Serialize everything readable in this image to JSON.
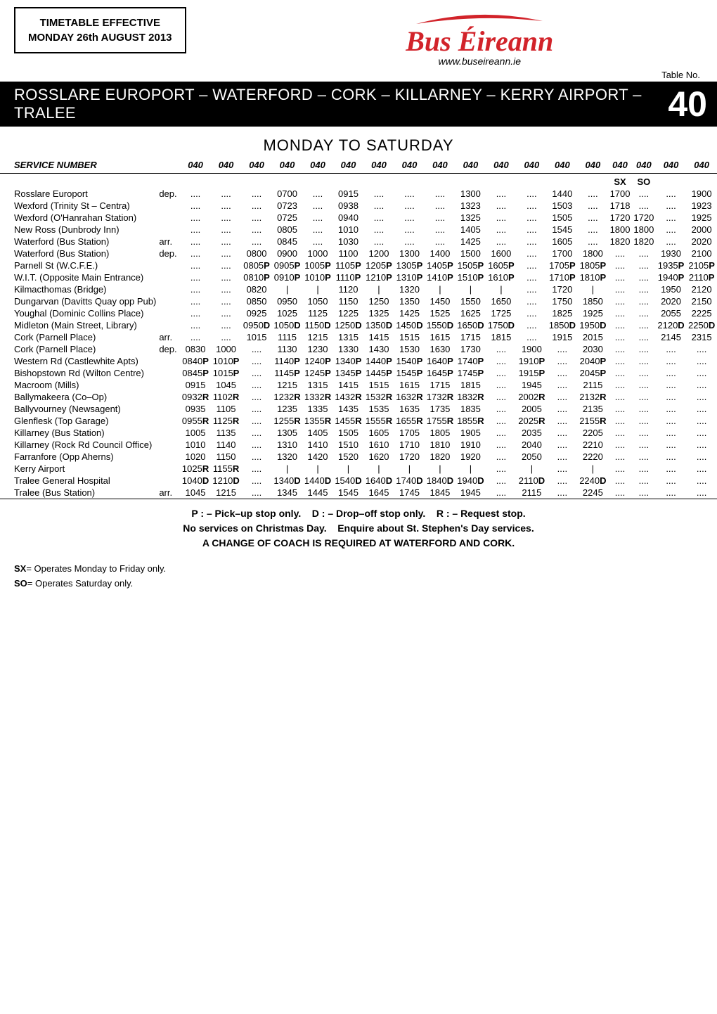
{
  "effective": {
    "line1": "TIMETABLE EFFECTIVE",
    "line2": "MONDAY 26th AUGUST 2013"
  },
  "logo": {
    "text": "Bus Éireann",
    "url": "www.buseireann.ie"
  },
  "tableNoLabel": "Table No.",
  "routeTitle": "ROSSLARE EUROPORT – WATERFORD – CORK – KILLARNEY – KERRY AIRPORT – TRALEE",
  "routeNumber": "40",
  "dayHeader": "MONDAY TO SATURDAY",
  "serviceLabel": "SERVICE NUMBER",
  "serviceCodes": [
    "040",
    "040",
    "040",
    "040",
    "040",
    "040",
    "040",
    "040",
    "040",
    "040",
    "040",
    "040",
    "040",
    "040",
    "040",
    "040",
    "040",
    "040"
  ],
  "sxRow": [
    "",
    "",
    "",
    "",
    "",
    "",
    "",
    "",
    "",
    "",
    "",
    "",
    "",
    "",
    "SX",
    "SO",
    "",
    ""
  ],
  "stops": [
    {
      "n": "Rosslare Europort",
      "q": "dep.",
      "t": [
        "....",
        "....",
        "....",
        "0700",
        "....",
        "0915",
        "....",
        "....",
        "....",
        "1300",
        "....",
        "....",
        "1440",
        "....",
        "1700",
        "....",
        "....",
        "1900"
      ]
    },
    {
      "n": "Wexford (Trinity St – Centra)",
      "q": "",
      "t": [
        "....",
        "....",
        "....",
        "0723",
        "....",
        "0938",
        "....",
        "....",
        "....",
        "1323",
        "....",
        "....",
        "1503",
        "....",
        "1718",
        "....",
        "....",
        "1923"
      ]
    },
    {
      "n": "Wexford (O'Hanrahan Station)",
      "q": "",
      "t": [
        "....",
        "....",
        "....",
        "0725",
        "....",
        "0940",
        "....",
        "....",
        "....",
        "1325",
        "....",
        "....",
        "1505",
        "....",
        "1720",
        "1720",
        "....",
        "1925"
      ]
    },
    {
      "n": "New Ross (Dunbrody Inn)",
      "q": "",
      "t": [
        "....",
        "....",
        "....",
        "0805",
        "....",
        "1010",
        "....",
        "....",
        "....",
        "1405",
        "....",
        "....",
        "1545",
        "....",
        "1800",
        "1800",
        "....",
        "2000"
      ]
    },
    {
      "n": "Waterford (Bus Station)",
      "q": "arr.",
      "t": [
        "....",
        "....",
        "....",
        "0845",
        "....",
        "1030",
        "....",
        "....",
        "....",
        "1425",
        "....",
        "....",
        "1605",
        "....",
        "1820",
        "1820",
        "....",
        "2020"
      ]
    },
    {
      "n": "Waterford (Bus Station)",
      "q": "dep.",
      "t": [
        "....",
        "....",
        "0800",
        "0900",
        "1000",
        "1100",
        "1200",
        "1300",
        "1400",
        "1500",
        "1600",
        "....",
        "1700",
        "1800",
        "....",
        "....",
        "1930",
        "2100"
      ]
    },
    {
      "n": "Parnell St (W.C.F.E.)",
      "q": "",
      "t": [
        "....",
        "....",
        "0805P",
        "0905P",
        "1005P",
        "1105P",
        "1205P",
        "1305P",
        "1405P",
        "1505P",
        "1605P",
        "....",
        "1705P",
        "1805P",
        "....",
        "....",
        "1935P",
        "2105P"
      ]
    },
    {
      "n": "W.I.T. (Opposite Main Entrance)",
      "q": "",
      "t": [
        "....",
        "....",
        "0810P",
        "0910P",
        "1010P",
        "1110P",
        "1210P",
        "1310P",
        "1410P",
        "1510P",
        "1610P",
        "....",
        "1710P",
        "1810P",
        "....",
        "....",
        "1940P",
        "2110P"
      ]
    },
    {
      "n": "Kilmacthomas (Bridge)",
      "q": "",
      "t": [
        "....",
        "....",
        "0820",
        "|",
        "|",
        "1120",
        "|",
        "1320",
        "|",
        "|",
        "|",
        "....",
        "1720",
        "|",
        "....",
        "....",
        "1950",
        "2120"
      ]
    },
    {
      "n": "Dungarvan (Davitts Quay opp Pub)",
      "q": "",
      "t": [
        "....",
        "....",
        "0850",
        "0950",
        "1050",
        "1150",
        "1250",
        "1350",
        "1450",
        "1550",
        "1650",
        "....",
        "1750",
        "1850",
        "....",
        "....",
        "2020",
        "2150"
      ]
    },
    {
      "n": "Youghal (Dominic Collins Place)",
      "q": "",
      "t": [
        "....",
        "....",
        "0925",
        "1025",
        "1125",
        "1225",
        "1325",
        "1425",
        "1525",
        "1625",
        "1725",
        "....",
        "1825",
        "1925",
        "....",
        "....",
        "2055",
        "2225"
      ]
    },
    {
      "n": "Midleton (Main Street, Library)",
      "q": "",
      "t": [
        "....",
        "....",
        "0950D",
        "1050D",
        "1150D",
        "1250D",
        "1350D",
        "1450D",
        "1550D",
        "1650D",
        "1750D",
        "....",
        "1850D",
        "1950D",
        "....",
        "....",
        "2120D",
        "2250D"
      ]
    },
    {
      "n": "Cork (Parnell Place)",
      "q": "arr.",
      "t": [
        "....",
        "....",
        "1015",
        "1115",
        "1215",
        "1315",
        "1415",
        "1515",
        "1615",
        "1715",
        "1815",
        "....",
        "1915",
        "2015",
        "....",
        "....",
        "2145",
        "2315"
      ]
    },
    {
      "n": "Cork (Parnell Place)",
      "q": "dep.",
      "t": [
        "0830",
        "1000",
        "....",
        "1130",
        "1230",
        "1330",
        "1430",
        "1530",
        "1630",
        "1730",
        "....",
        "1900",
        "....",
        "2030",
        "....",
        "....",
        "....",
        "...."
      ]
    },
    {
      "n": "Western Rd (Castlewhite Apts)",
      "q": "",
      "t": [
        "0840P",
        "1010P",
        "....",
        "1140P",
        "1240P",
        "1340P",
        "1440P",
        "1540P",
        "1640P",
        "1740P",
        "....",
        "1910P",
        "....",
        "2040P",
        "....",
        "....",
        "....",
        "...."
      ]
    },
    {
      "n": "Bishopstown Rd (Wilton Centre)",
      "q": "",
      "t": [
        "0845P",
        "1015P",
        "....",
        "1145P",
        "1245P",
        "1345P",
        "1445P",
        "1545P",
        "1645P",
        "1745P",
        "....",
        "1915P",
        "....",
        "2045P",
        "....",
        "....",
        "....",
        "...."
      ]
    },
    {
      "n": "Macroom (Mills)",
      "q": "",
      "t": [
        "0915",
        "1045",
        "....",
        "1215",
        "1315",
        "1415",
        "1515",
        "1615",
        "1715",
        "1815",
        "....",
        "1945",
        "....",
        "2115",
        "....",
        "....",
        "....",
        "...."
      ]
    },
    {
      "n": "Ballymakeera (Co–Op)",
      "q": "",
      "t": [
        "0932R",
        "1102R",
        "....",
        "1232R",
        "1332R",
        "1432R",
        "1532R",
        "1632R",
        "1732R",
        "1832R",
        "....",
        "2002R",
        "....",
        "2132R",
        "....",
        "....",
        "....",
        "...."
      ]
    },
    {
      "n": "Ballyvourney (Newsagent)",
      "q": "",
      "t": [
        "0935",
        "1105",
        "....",
        "1235",
        "1335",
        "1435",
        "1535",
        "1635",
        "1735",
        "1835",
        "....",
        "2005",
        "....",
        "2135",
        "....",
        "....",
        "....",
        "...."
      ]
    },
    {
      "n": "Glenflesk (Top Garage)",
      "q": "",
      "t": [
        "0955R",
        "1125R",
        "....",
        "1255R",
        "1355R",
        "1455R",
        "1555R",
        "1655R",
        "1755R",
        "1855R",
        "....",
        "2025R",
        "....",
        "2155R",
        "....",
        "....",
        "....",
        "...."
      ]
    },
    {
      "n": "Killarney (Bus Station)",
      "q": "",
      "t": [
        "1005",
        "1135",
        "....",
        "1305",
        "1405",
        "1505",
        "1605",
        "1705",
        "1805",
        "1905",
        "....",
        "2035",
        "....",
        "2205",
        "....",
        "....",
        "....",
        "...."
      ]
    },
    {
      "n": "Killarney (Rock Rd Council Office)",
      "q": "",
      "t": [
        "1010",
        "1140",
        "....",
        "1310",
        "1410",
        "1510",
        "1610",
        "1710",
        "1810",
        "1910",
        "....",
        "2040",
        "....",
        "2210",
        "....",
        "....",
        "....",
        "...."
      ]
    },
    {
      "n": "Farranfore (Opp Aherns)",
      "q": "",
      "t": [
        "1020",
        "1150",
        "....",
        "1320",
        "1420",
        "1520",
        "1620",
        "1720",
        "1820",
        "1920",
        "....",
        "2050",
        "....",
        "2220",
        "....",
        "....",
        "....",
        "...."
      ]
    },
    {
      "n": "Kerry Airport",
      "q": "",
      "t": [
        "1025R",
        "1155R",
        "....",
        "|",
        "|",
        "|",
        "|",
        "|",
        "|",
        "|",
        "....",
        "|",
        "....",
        "|",
        "....",
        "....",
        "....",
        "...."
      ]
    },
    {
      "n": "Tralee General Hospital",
      "q": "",
      "t": [
        "1040D",
        "1210D",
        "....",
        "1340D",
        "1440D",
        "1540D",
        "1640D",
        "1740D",
        "1840D",
        "1940D",
        "....",
        "2110D",
        "....",
        "2240D",
        "....",
        "....",
        "....",
        "...."
      ]
    },
    {
      "n": "Tralee (Bus Station)",
      "q": "arr.",
      "t": [
        "1045",
        "1215",
        "....",
        "1345",
        "1445",
        "1545",
        "1645",
        "1745",
        "1845",
        "1945",
        "....",
        "2115",
        "....",
        "2245",
        "....",
        "....",
        "....",
        "...."
      ]
    }
  ],
  "footer": {
    "l1": "P : – Pick–up stop only.    D : – Drop–off stop only.    R : – Request stop.",
    "l2": "No services on Christmas Day.    Enquire about St. Stephen's Day services.",
    "l3": "A CHANGE OF COACH IS REQUIRED AT WATERFORD AND CORK."
  },
  "legend": {
    "sx": "SX= Operates Monday to Friday only.",
    "so": "SO= Operates Saturday only."
  }
}
